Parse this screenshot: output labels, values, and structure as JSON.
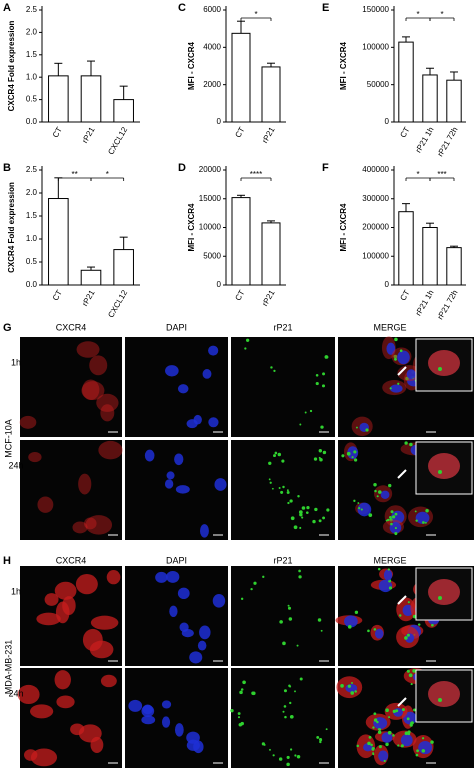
{
  "chart_data": [
    {
      "type": "bar",
      "title": "A",
      "y_label": "CXCR4 Fold expression",
      "categories": [
        "CT",
        "rP21",
        "CXCL12"
      ],
      "values": [
        1.03,
        1.03,
        0.5
      ],
      "errors": [
        0.28,
        0.33,
        0.3
      ],
      "color": "#ffffff",
      "annotations": [],
      "ylim": [
        0,
        2.5
      ],
      "yticks": [
        {
          "value": 0,
          "label": "0.0"
        },
        0.5,
        {
          "value": 1,
          "label": "1.0"
        },
        1.5,
        {
          "value": 2,
          "label": "2.0"
        },
        2.5
      ]
    },
    {
      "type": "bar",
      "title": "B",
      "y_label": "CXCR4 Fold expression",
      "categories": [
        "CT",
        "rP21",
        "CXCL12"
      ],
      "values": [
        1.88,
        0.32,
        0.77
      ],
      "errors": [
        0.45,
        0.07,
        0.27
      ],
      "color": "#ffffff",
      "annotations": [
        "**",
        "*"
      ],
      "ylim": [
        0,
        2.5
      ],
      "yticks": [
        {
          "value": 0,
          "label": "0.0"
        },
        0.5,
        {
          "value": 1,
          "label": "1.0"
        },
        1.5,
        {
          "value": 2,
          "label": "2.0"
        },
        2.5
      ]
    },
    {
      "type": "bar",
      "title": "C",
      "y_label": "MFI - CXCR4",
      "categories": [
        "CT",
        "rP21"
      ],
      "values": [
        4750,
        2950
      ],
      "errors": [
        650,
        200
      ],
      "color": "#ffffff",
      "annotations": [
        "*"
      ],
      "ylim": [
        0,
        6000
      ],
      "yticks": [
        0,
        2000,
        4000,
        6000
      ]
    },
    {
      "type": "bar",
      "title": "D",
      "y_label": "MFI - CXCR4",
      "categories": [
        "CT",
        "rP21"
      ],
      "values": [
        15200,
        10800
      ],
      "errors": [
        400,
        350
      ],
      "color": "#ffffff",
      "annotations": [
        "****"
      ],
      "ylim": [
        0,
        20000
      ],
      "yticks": [
        0,
        5000,
        10000,
        15000,
        20000
      ]
    },
    {
      "type": "bar",
      "title": "E",
      "y_label": "MFI - CXCR4",
      "categories": [
        "CT",
        "rP21 1h",
        "rP21 72h"
      ],
      "values": [
        107000,
        63000,
        56000
      ],
      "errors": [
        7000,
        9000,
        11000
      ],
      "color": "#ffffff",
      "annotations": [
        "*",
        "*"
      ],
      "ylim": [
        0,
        150000
      ],
      "yticks": [
        0,
        50000,
        100000,
        150000
      ]
    },
    {
      "type": "bar",
      "title": "F",
      "y_label": "MFI - CXCR4",
      "categories": [
        "CT",
        "rP21 1h",
        "rP21 72h"
      ],
      "values": [
        255000,
        200000,
        130000
      ],
      "errors": [
        28000,
        15000,
        5000
      ],
      "color": "#ffffff",
      "annotations": [
        "*",
        "***"
      ],
      "ylim": [
        0,
        400000
      ],
      "yticks": [
        0,
        100000,
        200000,
        300000,
        400000
      ]
    }
  ],
  "microscopy": [
    {
      "label": "G",
      "columns": [
        "CXCR4",
        "DAPI",
        "rP21",
        "MERGE"
      ],
      "rows": [
        "1h",
        "24h"
      ],
      "cell_line": "MCF-10A"
    },
    {
      "label": "H",
      "columns": [
        "CXCR4",
        "DAPI",
        "rP21",
        "MERGE"
      ],
      "rows": [
        "1h",
        "24h"
      ],
      "cell_line": "MDA-MB-231"
    }
  ]
}
